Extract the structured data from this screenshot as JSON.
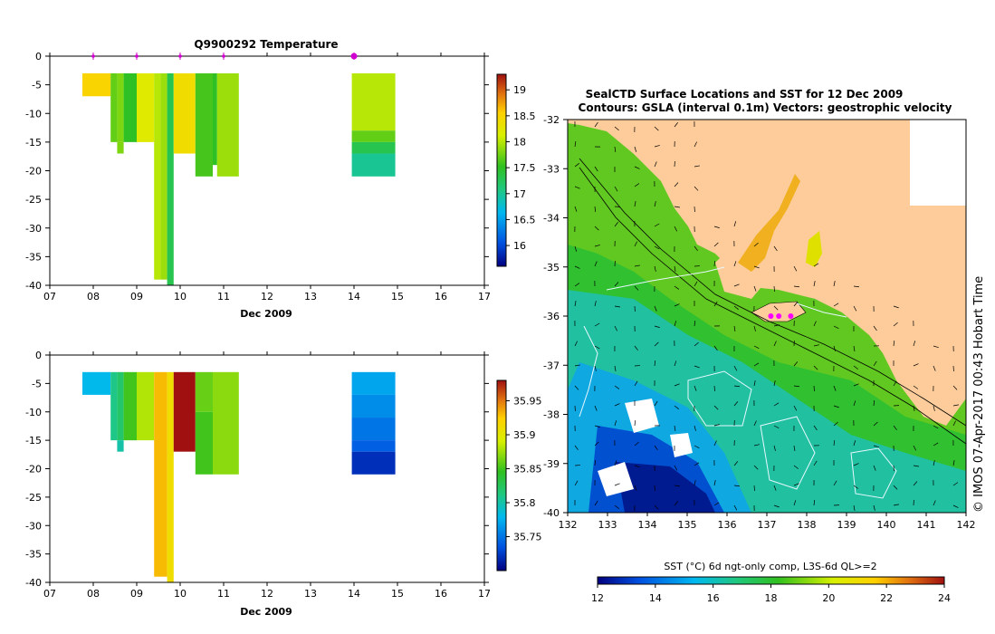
{
  "chart_data": [
    {
      "type": "heatmap",
      "title": "Q9900292  Temperature",
      "xlabel": "Dec 2009",
      "ylabel": "",
      "xlim": [
        7,
        17
      ],
      "ylim": [
        -40,
        0
      ],
      "xticks": [
        "07",
        "08",
        "09",
        "10",
        "11",
        "12",
        "13",
        "14",
        "15",
        "16",
        "17"
      ],
      "yticks": [
        "0",
        "-5",
        "-10",
        "-15",
        "-20",
        "-25",
        "-30",
        "-35",
        "-40"
      ],
      "colorbar": {
        "min": 15.6,
        "max": 19.3,
        "ticks": [
          "16",
          "16.5",
          "17",
          "17.5",
          "18",
          "18.5",
          "19"
        ],
        "tick_values": [
          16,
          16.5,
          17,
          17.5,
          18,
          18.5,
          19
        ]
      },
      "markers_day": [
        8,
        9,
        10,
        11,
        14
      ],
      "profiles": [
        {
          "x0": 7.75,
          "x1": 8.4,
          "cells": [
            {
              "top": -3,
              "bot": -7,
              "v": 18.5
            }
          ]
        },
        {
          "x0": 8.4,
          "x1": 8.55,
          "cells": [
            {
              "top": -3,
              "bot": -15,
              "v": 17.7
            }
          ]
        },
        {
          "x0": 8.55,
          "x1": 8.7,
          "cells": [
            {
              "top": -3,
              "bot": -15,
              "v": 17.8
            },
            {
              "top": -15,
              "bot": -17,
              "v": 17.8
            }
          ]
        },
        {
          "x0": 8.7,
          "x1": 9.0,
          "cells": [
            {
              "top": -3,
              "bot": -15,
              "v": 17.5
            }
          ]
        },
        {
          "x0": 9.0,
          "x1": 9.4,
          "cells": [
            {
              "top": -3,
              "bot": -15,
              "v": 18.2
            }
          ]
        },
        {
          "x0": 9.4,
          "x1": 9.55,
          "cells": [
            {
              "top": -3,
              "bot": -39,
              "v": 18.0
            }
          ]
        },
        {
          "x0": 9.55,
          "x1": 9.7,
          "cells": [
            {
              "top": -3,
              "bot": -39,
              "v": 17.9
            }
          ]
        },
        {
          "x0": 9.7,
          "x1": 9.85,
          "cells": [
            {
              "top": -3,
              "bot": -40,
              "v": 17.3
            }
          ]
        },
        {
          "x0": 9.85,
          "x1": 10.35,
          "cells": [
            {
              "top": -3,
              "bot": -17,
              "v": 18.4
            }
          ]
        },
        {
          "x0": 10.35,
          "x1": 10.75,
          "cells": [
            {
              "top": -3,
              "bot": -21,
              "v": 17.6
            }
          ]
        },
        {
          "x0": 10.75,
          "x1": 10.85,
          "cells": [
            {
              "top": -3,
              "bot": -19,
              "v": 17.5
            }
          ]
        },
        {
          "x0": 10.85,
          "x1": 11.35,
          "cells": [
            {
              "top": -3,
              "bot": -21,
              "v": 17.9
            }
          ]
        },
        {
          "x0": 13.95,
          "x1": 14.95,
          "cells": [
            {
              "top": -3,
              "bot": -13,
              "v": 18.0
            },
            {
              "top": -13,
              "bot": -15,
              "v": 17.7
            },
            {
              "top": -15,
              "bot": -17,
              "v": 17.3
            },
            {
              "top": -17,
              "bot": -21,
              "v": 17.0
            }
          ]
        }
      ]
    },
    {
      "type": "heatmap",
      "title": "",
      "xlabel": "Dec 2009",
      "ylabel": "",
      "xlim": [
        7,
        17
      ],
      "ylim": [
        -40,
        0
      ],
      "xticks": [
        "07",
        "08",
        "09",
        "10",
        "11",
        "12",
        "13",
        "14",
        "15",
        "16",
        "17"
      ],
      "yticks": [
        "0",
        "-5",
        "-10",
        "-15",
        "-20",
        "-25",
        "-30",
        "-35",
        "-40"
      ],
      "colorbar": {
        "min": 35.7,
        "max": 35.98,
        "ticks": [
          "35.75",
          "35.8",
          "35.85",
          "35.9",
          "35.95"
        ],
        "tick_values": [
          35.75,
          35.8,
          35.85,
          35.9,
          35.95
        ]
      },
      "profiles": [
        {
          "x0": 7.75,
          "x1": 8.4,
          "cells": [
            {
              "top": -3,
              "bot": -7,
              "v": 35.78
            }
          ]
        },
        {
          "x0": 8.4,
          "x1": 8.55,
          "cells": [
            {
              "top": -3,
              "bot": -15,
              "v": 35.81
            }
          ]
        },
        {
          "x0": 8.55,
          "x1": 8.7,
          "cells": [
            {
              "top": -3,
              "bot": -15,
              "v": 35.82
            },
            {
              "top": -15,
              "bot": -17,
              "v": 35.8
            }
          ]
        },
        {
          "x0": 8.7,
          "x1": 9.0,
          "cells": [
            {
              "top": -3,
              "bot": -15,
              "v": 35.85
            }
          ]
        },
        {
          "x0": 9.0,
          "x1": 9.4,
          "cells": [
            {
              "top": -3,
              "bot": -15,
              "v": 35.88
            }
          ]
        },
        {
          "x0": 9.4,
          "x1": 9.7,
          "cells": [
            {
              "top": -3,
              "bot": -39,
              "v": 35.93
            }
          ]
        },
        {
          "x0": 9.7,
          "x1": 9.85,
          "cells": [
            {
              "top": -3,
              "bot": -40,
              "v": 35.91
            }
          ]
        },
        {
          "x0": 9.85,
          "x1": 10.35,
          "cells": [
            {
              "top": -3,
              "bot": -17,
              "v": 35.98
            }
          ]
        },
        {
          "x0": 10.35,
          "x1": 10.75,
          "cells": [
            {
              "top": -3,
              "bot": -10,
              "v": 35.86
            },
            {
              "top": -10,
              "bot": -21,
              "v": 35.85
            }
          ]
        },
        {
          "x0": 10.75,
          "x1": 11.35,
          "cells": [
            {
              "top": -3,
              "bot": -21,
              "v": 35.87
            }
          ]
        },
        {
          "x0": 13.95,
          "x1": 14.95,
          "cells": [
            {
              "top": -3,
              "bot": -7,
              "v": 35.77
            },
            {
              "top": -7,
              "bot": -11,
              "v": 35.76
            },
            {
              "top": -11,
              "bot": -15,
              "v": 35.75
            },
            {
              "top": -15,
              "bot": -17,
              "v": 35.74
            },
            {
              "top": -17,
              "bot": -21,
              "v": 35.72
            }
          ]
        }
      ]
    },
    {
      "type": "heatmap",
      "title": "SealCTD Surface Locations and SST for 12 Dec 2009",
      "subtitle": "Contours: GSLA (interval 0.1m) Vectors: geostrophic velocity",
      "xlabel": "",
      "ylabel": "",
      "xlim": [
        132,
        142
      ],
      "ylim": [
        -40,
        -32
      ],
      "xticks": [
        "132",
        "133",
        "134",
        "135",
        "136",
        "137",
        "138",
        "139",
        "140",
        "141",
        "142"
      ],
      "yticks": [
        "-32",
        "-33",
        "-34",
        "-35",
        "-36",
        "-37",
        "-38",
        "-39",
        "-40"
      ],
      "colorbar": {
        "label": "SST (°C) 6d ngt-only comp, L3S-6d QL>=2",
        "min": 12,
        "max": 24,
        "ticks": [
          "12",
          "14",
          "16",
          "18",
          "20",
          "22",
          "24"
        ],
        "tick_values": [
          12,
          14,
          16,
          18,
          20,
          22,
          24
        ]
      },
      "seal_locations": [
        [
          137.1,
          -36.0
        ],
        [
          137.3,
          -36.0
        ],
        [
          137.6,
          -36.0
        ]
      ],
      "side_label": "© IMOS 07-Apr-2017 00:43 Hobart Time"
    }
  ]
}
